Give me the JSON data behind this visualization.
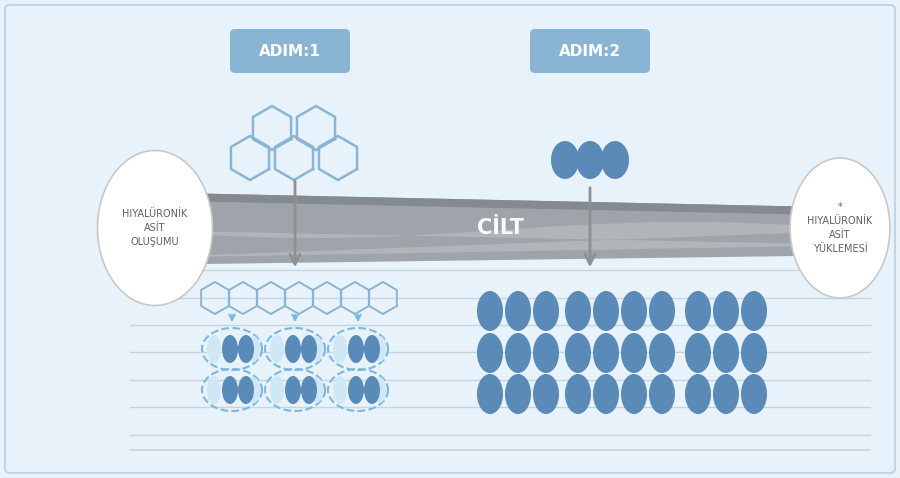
{
  "bg_color": "#e8f2fa",
  "blue_light": "#8ab4d4",
  "blue_dot": "#6b9dcc",
  "blue_dot_dark": "#5a8ab8",
  "dashed_color": "#7ab8e0",
  "arrow_color": "#909090",
  "label_bg": "#8ab4d4",
  "adim1_text": "ADIM:1",
  "adim2_text": "ADIM:2",
  "circle1_text": "HIYALÜRONİK\nASİT\nOLUŞUMU",
  "circle2_text": "*\nHIYALÜRONİK\nASİT\nYÜKLEMESİ",
  "cilt_text": "CİLT",
  "line_color": "#c8d4dc",
  "skin_main": "#9ea4aa",
  "skin_wave": "#b8bdc2",
  "skin_dark_top": "#858a90"
}
